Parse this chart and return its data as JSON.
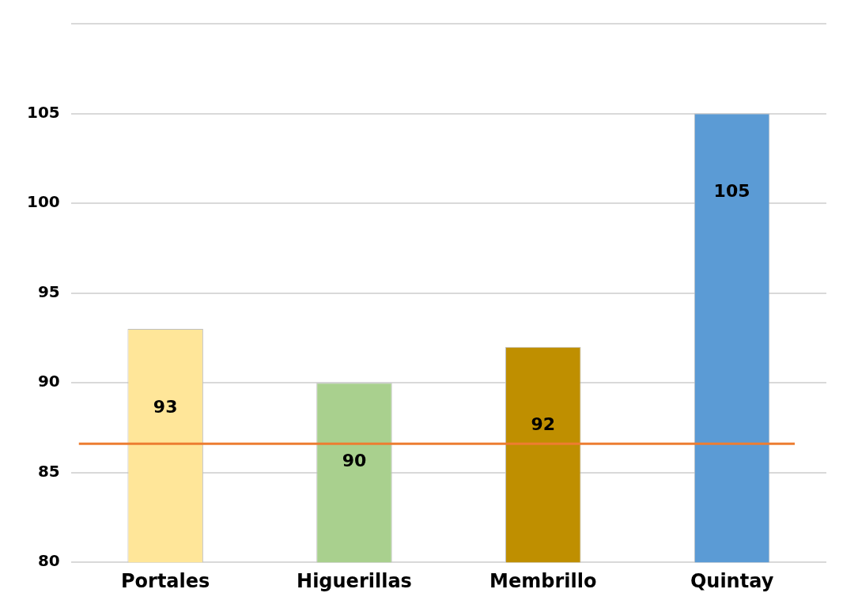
{
  "chart_data": {
    "type": "bar",
    "categories": [
      "Portales",
      "Higuerillas",
      "Membrillo",
      "Quintay"
    ],
    "values": [
      93,
      90,
      92,
      105
    ],
    "colors": [
      "#ffe699",
      "#a9d08e",
      "#bf8f00",
      "#5b9bd5"
    ],
    "ylim": [
      80,
      110
    ],
    "yticks": [
      80,
      85,
      90,
      95,
      100,
      105,
      {
        "value": 110,
        "label": null
      }
    ],
    "grid": "y",
    "data_labels": true,
    "ref_lines": [
      {
        "axis": "y",
        "value": 86.6,
        "color": "#ed7d31"
      }
    ]
  }
}
